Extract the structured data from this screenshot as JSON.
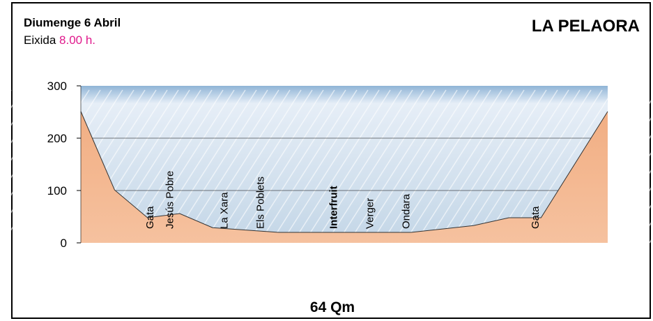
{
  "chart_data": {
    "type": "area",
    "title": "LA PELAORA",
    "date": "Diumenge 6 Abril",
    "departure_label": "Eixida",
    "departure_time": "8.00 h.",
    "distance": "64 Qm",
    "x": [
      0,
      4.1,
      8.1,
      12.0,
      16.0,
      24.0,
      40.1,
      47.7,
      52.0,
      55.9,
      64
    ],
    "values": [
      251,
      101,
      48,
      56,
      29,
      20,
      20,
      33,
      48,
      48,
      251
    ],
    "xlim": [
      0,
      64
    ],
    "ylim": [
      0,
      300
    ],
    "yticks": [
      0,
      100,
      200,
      300
    ],
    "grid": true,
    "color": "#f3b48e",
    "sky_color": "#c9dcec",
    "places": [
      {
        "name": "Gata",
        "x": 8.3
      },
      {
        "name": "Jesús Pobre",
        "x": 10.7
      },
      {
        "name": "La Xara",
        "x": 17.3
      },
      {
        "name": "Els Poblets",
        "x": 21.7
      },
      {
        "name": "Interfruit",
        "x": 30.6,
        "bold": true
      },
      {
        "name": "Verger",
        "x": 35.0
      },
      {
        "name": "Ondara",
        "x": 39.4
      },
      {
        "name": "Gata",
        "x": 55.1
      }
    ]
  }
}
